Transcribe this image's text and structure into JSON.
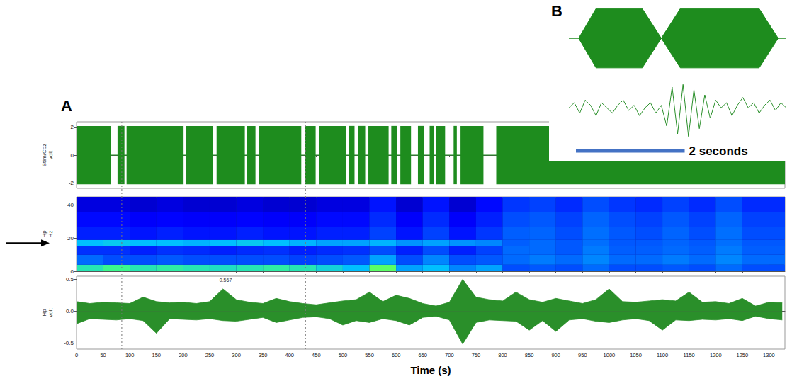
{
  "chart_data": [
    {
      "panel": "A",
      "type": "bursts",
      "y_label": "Stim/Cpz volt",
      "xlim": [
        0,
        1330
      ],
      "xticks": [
        0,
        50,
        100,
        150,
        200,
        250,
        300,
        350,
        400,
        450,
        500,
        550,
        600,
        650,
        700,
        750,
        800,
        850,
        900,
        950,
        1000,
        1050,
        1100,
        1150,
        1200,
        1250,
        1300
      ],
      "ylim": [
        -2.4,
        2.4
      ],
      "yticks": [
        -2,
        0,
        2
      ],
      "tick_labels": "y",
      "grid": false,
      "color": "#1e8c1e",
      "baseline": 0,
      "burst_range": [
        -2.1,
        2.1
      ],
      "bursts": [
        [
          1,
          64
        ],
        [
          77,
          90
        ],
        [
          94,
          201
        ],
        [
          206,
          256
        ],
        [
          263,
          316
        ],
        [
          320,
          336
        ],
        [
          343,
          422
        ],
        [
          429,
          449
        ],
        [
          456,
          506
        ],
        [
          511,
          522
        ],
        [
          529,
          542
        ],
        [
          548,
          586
        ],
        [
          591,
          602
        ],
        [
          608,
          628
        ],
        [
          641,
          652
        ],
        [
          663,
          671
        ],
        [
          675,
          692
        ],
        [
          708,
          714
        ],
        [
          721,
          764
        ],
        [
          788,
          1330
        ]
      ],
      "markers": [
        85,
        430
      ]
    },
    {
      "type": "heatmap",
      "y_label": "Hp Hz",
      "xlim": [
        0,
        1330
      ],
      "xticks": [
        0,
        50,
        100,
        150,
        200,
        250,
        300,
        350,
        400,
        450,
        500,
        550,
        600,
        650,
        700,
        750,
        800,
        850,
        900,
        950,
        1000,
        1050,
        1100,
        1150,
        1200,
        1250,
        1300
      ],
      "ylim": [
        0,
        45
      ],
      "yticks": [
        0,
        20,
        40
      ],
      "tick_labels": "y",
      "grid": false,
      "time_edges": [
        0,
        50,
        100,
        150,
        200,
        250,
        300,
        350,
        400,
        450,
        500,
        550,
        600,
        650,
        700,
        750,
        800,
        850,
        900,
        950,
        1000,
        1050,
        1100,
        1150,
        1200,
        1250,
        1300,
        1350
      ],
      "freq_edges": [
        0,
        4,
        10,
        15,
        19,
        27,
        36,
        45
      ],
      "power": [
        [
          0.6,
          0.65,
          0.6,
          0.62,
          0.6,
          0.58,
          0.6,
          0.62,
          0.6,
          0.55,
          0.5,
          0.7,
          0.45,
          0.5,
          0.4,
          0.45,
          0.3,
          0.32,
          0.3,
          0.35,
          0.3,
          0.3,
          0.32,
          0.3,
          0.35,
          0.3,
          0.3
        ],
        [
          0.35,
          0.3,
          0.3,
          0.32,
          0.3,
          0.3,
          0.3,
          0.3,
          0.28,
          0.3,
          0.32,
          0.45,
          0.3,
          0.4,
          0.3,
          0.32,
          0.35,
          0.38,
          0.35,
          0.4,
          0.35,
          0.35,
          0.38,
          0.35,
          0.4,
          0.35,
          0.35
        ],
        [
          0.25,
          0.25,
          0.22,
          0.25,
          0.24,
          0.22,
          0.24,
          0.25,
          0.22,
          0.24,
          0.25,
          0.3,
          0.22,
          0.3,
          0.22,
          0.28,
          0.35,
          0.35,
          0.32,
          0.38,
          0.33,
          0.33,
          0.35,
          0.33,
          0.38,
          0.33,
          0.33
        ],
        [
          0.5,
          0.52,
          0.5,
          0.5,
          0.48,
          0.5,
          0.52,
          0.5,
          0.48,
          0.45,
          0.45,
          0.48,
          0.42,
          0.45,
          0.42,
          0.4,
          0.33,
          0.35,
          0.32,
          0.36,
          0.32,
          0.32,
          0.34,
          0.32,
          0.36,
          0.32,
          0.32
        ],
        [
          0.22,
          0.22,
          0.2,
          0.22,
          0.2,
          0.2,
          0.22,
          0.2,
          0.2,
          0.22,
          0.22,
          0.28,
          0.2,
          0.28,
          0.2,
          0.26,
          0.33,
          0.34,
          0.3,
          0.36,
          0.32,
          0.3,
          0.34,
          0.3,
          0.36,
          0.3,
          0.3
        ],
        [
          0.18,
          0.18,
          0.16,
          0.17,
          0.16,
          0.16,
          0.17,
          0.16,
          0.16,
          0.18,
          0.18,
          0.24,
          0.16,
          0.24,
          0.16,
          0.22,
          0.3,
          0.32,
          0.28,
          0.34,
          0.3,
          0.28,
          0.32,
          0.28,
          0.34,
          0.28,
          0.28
        ],
        [
          0.12,
          0.12,
          0.1,
          0.12,
          0.1,
          0.1,
          0.12,
          0.1,
          0.1,
          0.12,
          0.12,
          0.2,
          0.1,
          0.2,
          0.1,
          0.18,
          0.26,
          0.28,
          0.24,
          0.3,
          0.26,
          0.24,
          0.28,
          0.24,
          0.3,
          0.24,
          0.24
        ]
      ],
      "clim": [
        0,
        1
      ],
      "arrow_at": 17
    },
    {
      "type": "line",
      "x_label": "Time (s)",
      "y_label": "Hp volt",
      "xlim": [
        0,
        1330
      ],
      "xticks": [
        0,
        50,
        100,
        150,
        200,
        250,
        300,
        350,
        400,
        450,
        500,
        550,
        600,
        650,
        700,
        750,
        800,
        850,
        900,
        950,
        1000,
        1050,
        1100,
        1150,
        1200,
        1250,
        1300
      ],
      "ylim": [
        -0.6,
        0.55
      ],
      "yticks": [
        -0.5,
        {
          "value": 0,
          "label": "0.0"
        },
        0.5
      ],
      "grid": false,
      "color": "#2a8f2a",
      "x": [
        0,
        25,
        50,
        75,
        100,
        125,
        150,
        175,
        200,
        225,
        250,
        275,
        300,
        325,
        350,
        375,
        400,
        425,
        450,
        475,
        500,
        525,
        550,
        575,
        600,
        625,
        650,
        675,
        700,
        725,
        750,
        775,
        800,
        825,
        850,
        875,
        900,
        925,
        950,
        975,
        1000,
        1025,
        1050,
        1075,
        1100,
        1125,
        1150,
        1175,
        1200,
        1225,
        1250,
        1275,
        1300,
        1325
      ],
      "envelope_max": [
        0.15,
        0.12,
        0.14,
        0.13,
        0.12,
        0.22,
        0.15,
        0.13,
        0.14,
        0.12,
        0.15,
        0.35,
        0.18,
        0.14,
        0.12,
        0.2,
        0.15,
        0.12,
        0.1,
        0.13,
        0.16,
        0.18,
        0.3,
        0.15,
        0.25,
        0.2,
        0.12,
        0.08,
        0.14,
        0.5,
        0.22,
        0.18,
        0.16,
        0.3,
        0.18,
        0.14,
        0.2,
        0.16,
        0.12,
        0.18,
        0.35,
        0.15,
        0.14,
        0.16,
        0.18,
        0.16,
        0.3,
        0.14,
        0.15,
        0.12,
        0.2,
        0.08,
        0.14,
        0.13
      ],
      "envelope_min": [
        -0.2,
        -0.12,
        -0.13,
        -0.14,
        -0.12,
        -0.15,
        -0.35,
        -0.12,
        -0.13,
        -0.14,
        -0.12,
        -0.15,
        -0.16,
        -0.13,
        -0.1,
        -0.18,
        -0.14,
        -0.1,
        -0.09,
        -0.12,
        -0.22,
        -0.15,
        -0.18,
        -0.12,
        -0.15,
        -0.22,
        -0.1,
        -0.08,
        -0.14,
        -0.52,
        -0.18,
        -0.14,
        -0.15,
        -0.16,
        -0.3,
        -0.15,
        -0.32,
        -0.14,
        -0.12,
        -0.16,
        -0.18,
        -0.14,
        -0.12,
        -0.15,
        -0.3,
        -0.14,
        -0.15,
        -0.13,
        -0.14,
        -0.12,
        -0.15,
        -0.08,
        -0.12,
        -0.14
      ],
      "annotations": [
        {
          "text": "0.567",
          "x": 280
        }
      ]
    },
    {
      "panel": "B",
      "type": "area",
      "tick_labels": false,
      "xlim": [
        0,
        4
      ],
      "ylim": [
        -1.1,
        1.1
      ],
      "color": "#1e8c1e",
      "x": [
        0,
        0.18,
        0.5,
        1.35,
        1.7,
        2.05,
        3.5,
        3.85,
        4.0
      ],
      "upper": [
        0,
        0,
        1,
        1,
        0,
        1,
        1,
        0,
        0
      ],
      "lower": [
        0,
        0,
        -1,
        -1,
        0,
        -1,
        -1,
        0,
        0
      ]
    },
    {
      "type": "line",
      "tick_labels": false,
      "xlim": [
        0,
        4
      ],
      "ylim": [
        -1.2,
        1.2
      ],
      "color": "#2a8f2a",
      "x": [
        0,
        0.1,
        0.2,
        0.3,
        0.4,
        0.5,
        0.6,
        0.7,
        0.8,
        0.9,
        1.0,
        1.1,
        1.2,
        1.3,
        1.4,
        1.5,
        1.6,
        1.7,
        1.8,
        1.9,
        2.0,
        2.1,
        2.2,
        2.3,
        2.4,
        2.5,
        2.6,
        2.7,
        2.8,
        2.9,
        3.0,
        3.1,
        3.2,
        3.3,
        3.4,
        3.5,
        3.6,
        3.7,
        3.8,
        3.9,
        4.0
      ],
      "values": [
        0.1,
        0.3,
        -0.1,
        0.4,
        0.2,
        -0.2,
        0.3,
        0.1,
        -0.1,
        0.2,
        0.4,
        0.0,
        0.2,
        -0.2,
        0.1,
        0.3,
        -0.1,
        0.2,
        -0.6,
        0.9,
        -0.9,
        1.0,
        -1.0,
        0.8,
        -0.7,
        0.6,
        -0.3,
        0.4,
        0.1,
        0.3,
        -0.2,
        0.2,
        0.5,
        0.1,
        0.3,
        -0.1,
        0.2,
        0.4,
        0.0,
        0.3,
        0.1
      ],
      "scale_bar": {
        "length": 2,
        "label": "2 seconds"
      }
    }
  ]
}
